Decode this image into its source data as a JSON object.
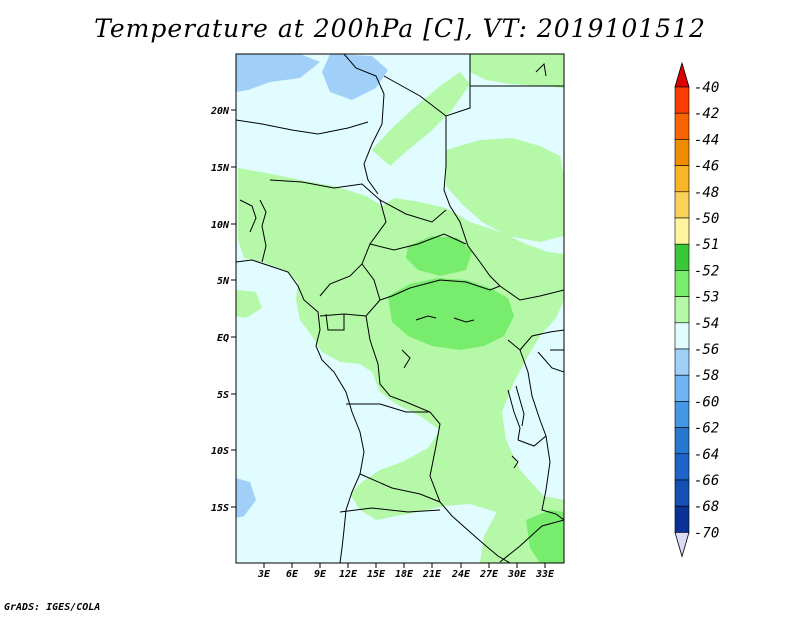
{
  "title": "Temperature at 200hPa [C], VT: 2019101512",
  "footer": "GrADS: IGES/COLA",
  "map": {
    "lat_labels": [
      "20N",
      "15N",
      "10N",
      "5N",
      "EQ",
      "5S",
      "10S",
      "15S"
    ],
    "lon_labels": [
      "3E",
      "6E",
      "9E",
      "12E",
      "15E",
      "18E",
      "21E",
      "24E",
      "27E",
      "30E",
      "33E"
    ],
    "colors": {
      "background_band": "#e0fcff",
      "band_minus53": "#b4f8a8",
      "band_minus52": "#78ec6c",
      "band_minus56": "#a0d0f8",
      "border": "#000000"
    }
  },
  "legend": {
    "labels": [
      "-40",
      "-42",
      "-44",
      "-46",
      "-48",
      "-50",
      "-51",
      "-52",
      "-53",
      "-54",
      "-56",
      "-58",
      "-60",
      "-62",
      "-64",
      "-66",
      "-68",
      "-70"
    ],
    "colors": [
      "#fa3c00",
      "#fa6400",
      "#f08c00",
      "#fab428",
      "#fad25a",
      "#fff5a0",
      "#38c838",
      "#78ec6c",
      "#b4f8a8",
      "#e0fcff",
      "#a0d0f8",
      "#6eb4f0",
      "#4696e6",
      "#2878d2",
      "#1e64c8",
      "#1450b4",
      "#0a3296",
      "#0a0a64"
    ],
    "top_arrow_color": "#dc0000",
    "bottom_arrow_color": "#dcdcf8"
  }
}
